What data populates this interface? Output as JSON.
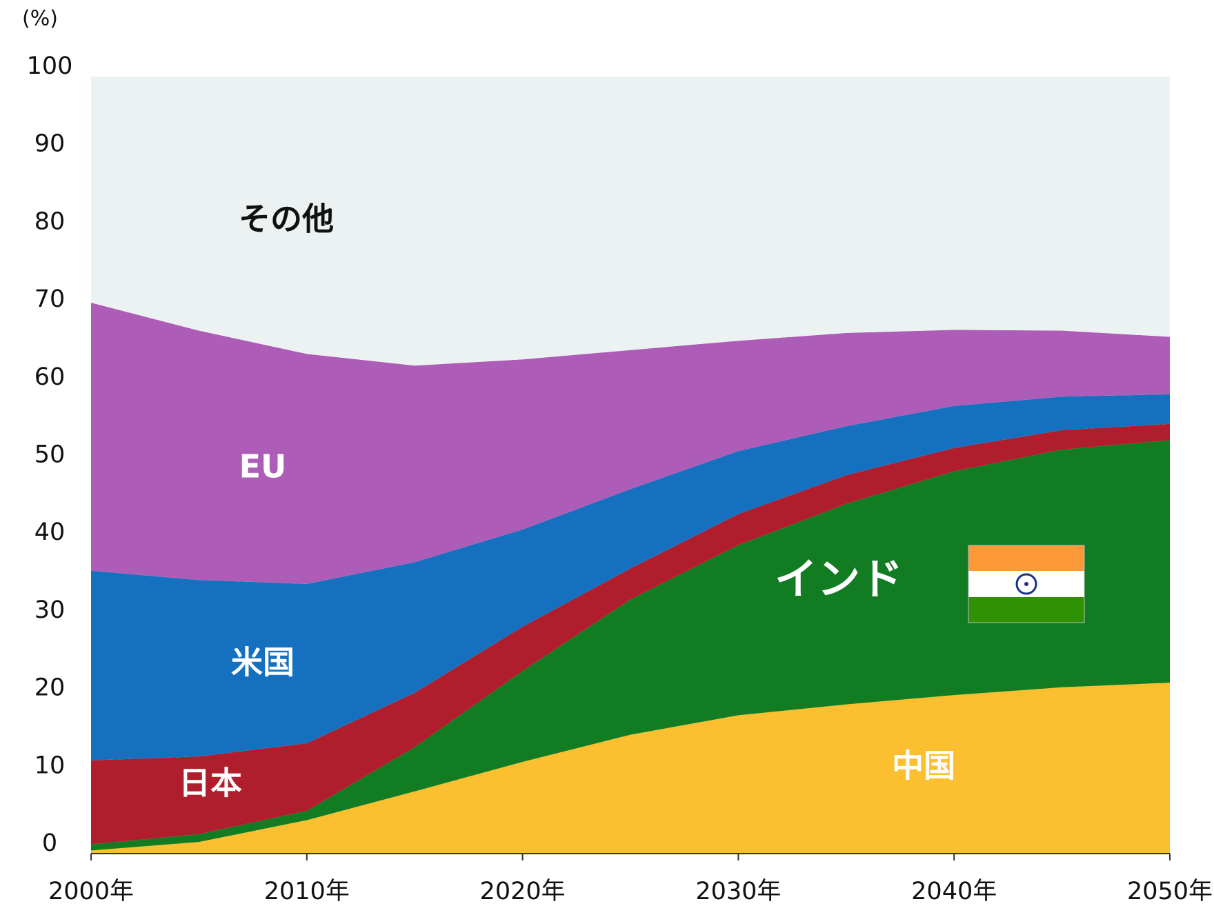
{
  "chart_data": {
    "type": "stacked-area",
    "y_unit": "(%)",
    "x": [
      2000,
      2005,
      2010,
      2015,
      2020,
      2025,
      2030,
      2035,
      2040,
      2045,
      2050
    ],
    "series": [
      {
        "name": "中国",
        "color": "#fbbf2f",
        "values": [
          0.4,
          1.5,
          4.3,
          8.0,
          11.8,
          15.3,
          17.8,
          19.2,
          20.4,
          21.4,
          22.0
        ]
      },
      {
        "name": "インド",
        "color": "#127c22",
        "values": [
          0.8,
          1.0,
          1.2,
          5.7,
          11.7,
          17.4,
          21.9,
          25.8,
          28.8,
          30.6,
          31.2
        ]
      },
      {
        "name": "日本",
        "color": "#b01e2d",
        "values": [
          10.8,
          10.0,
          8.7,
          7.0,
          5.7,
          4.0,
          4.0,
          3.7,
          3.0,
          2.5,
          2.1
        ]
      },
      {
        "name": "米国",
        "color": "#1571c0",
        "values": [
          24.4,
          22.7,
          20.5,
          16.8,
          12.5,
          10.2,
          8.1,
          6.3,
          5.4,
          4.3,
          3.8
        ]
      },
      {
        "name": "EU",
        "color": "#ad5db7",
        "values": [
          34.5,
          32.1,
          29.6,
          25.3,
          21.9,
          17.9,
          14.2,
          12.0,
          9.8,
          8.5,
          7.4
        ]
      },
      {
        "name": "その他",
        "color": "#ecf2f2",
        "values": [
          29.1,
          32.7,
          35.7,
          37.2,
          36.4,
          35.2,
          34.0,
          33.0,
          32.6,
          32.7,
          33.5
        ]
      }
    ],
    "xlim": [
      2000,
      2050
    ],
    "xticks": [
      {
        "value": 2000,
        "label": "2000年"
      },
      {
        "value": 2010,
        "label": "2010年"
      },
      {
        "value": 2020,
        "label": "2020年"
      },
      {
        "value": 2030,
        "label": "2030年"
      },
      {
        "value": 2040,
        "label": "2040年"
      },
      {
        "value": 2050,
        "label": "2050年"
      }
    ],
    "ylim": [
      0,
      100
    ],
    "yticks": [
      0,
      10,
      20,
      30,
      40,
      50,
      60,
      70,
      80,
      90,
      100
    ]
  }
}
